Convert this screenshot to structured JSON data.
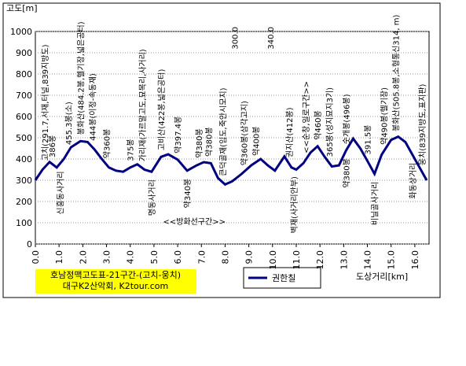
{
  "chart_data": {
    "type": "line",
    "title": "호남정맥고도표-21구간-(고치-웅치)",
    "subtitle": "대구K2산악회, K2tour.com",
    "y_label": "고도[m]",
    "x_label": "도상거리[km]",
    "x": [
      0,
      0.3,
      0.6,
      0.9,
      1.2,
      1.5,
      1.9,
      2.2,
      2.5,
      2.8,
      3.1,
      3.4,
      3.7,
      4.0,
      4.3,
      4.6,
      4.9,
      5.3,
      5.6,
      6.0,
      6.4,
      6.8,
      7.1,
      7.4,
      7.7,
      8.0,
      8.3,
      8.7,
      9.1,
      9.5,
      9.8,
      10.1,
      10.5,
      10.8,
      11.0,
      11.3,
      11.6,
      11.9,
      12.2,
      12.5,
      12.8,
      13.1,
      13.4,
      13.7,
      14.0,
      14.3,
      14.6,
      15.0,
      15.3,
      15.6,
      15.9,
      16.2,
      16.5
    ],
    "series": [
      {
        "name": "권한칠",
        "color": "#000080",
        "values": [
          300,
          350,
          386,
          360,
          400,
          455,
          484,
          480,
          444,
          400,
          360,
          345,
          340,
          360,
          375,
          350,
          340,
          410,
          422,
          397,
          345,
          370,
          385,
          380,
          310,
          280,
          295,
          330,
          370,
          400,
          370,
          345,
          412,
          360,
          350,
          380,
          430,
          460,
          410,
          365,
          370,
          440,
          496,
          450,
          391,
          330,
          420,
          490,
          505,
          480,
          420,
          360,
          300
        ]
      }
    ],
    "xlim": [
      0,
      16.6
    ],
    "ylim": [
      0,
      1000
    ],
    "xticks": [
      {
        "value": 0,
        "label": "0.0"
      },
      {
        "value": 1,
        "label": "1.0"
      },
      {
        "value": 2,
        "label": "2.0"
      },
      {
        "value": 3,
        "label": "3.0"
      },
      {
        "value": 4,
        "label": "4.0"
      },
      {
        "value": 5,
        "label": "5.0"
      },
      {
        "value": 6,
        "label": "6.0"
      },
      {
        "value": 7,
        "label": "7.0"
      },
      {
        "value": 8,
        "label": "8.0"
      },
      {
        "value": 9,
        "label": "9.0"
      },
      {
        "value": 10,
        "label": "10.0"
      },
      {
        "value": 11,
        "label": "11.0"
      },
      {
        "value": 12,
        "label": "12.0"
      },
      {
        "value": 13,
        "label": "13.0"
      },
      {
        "value": 14,
        "label": "14.0"
      },
      {
        "value": 15,
        "label": "15.0"
      },
      {
        "value": 16,
        "label": "16.0"
      }
    ],
    "yticks": [
      0,
      100,
      200,
      300,
      400,
      500,
      600,
      700,
      800,
      900,
      1000
    ],
    "grid": true,
    "annotations": [
      {
        "text": "고치(291.7,서재,터널,839지방도)",
        "x": 0.4,
        "position": "above"
      },
      {
        "text": "386봉",
        "x": 0.7,
        "position": "above"
      },
      {
        "text": "455.3봉(소)",
        "x": 1.4,
        "position": "above"
      },
      {
        "text": "봉화산(484.2봉,헬기장,넓은공터)",
        "x": 1.9,
        "position": "above"
      },
      {
        "text": "444봉(이정-속동재)",
        "x": 2.4,
        "position": "above"
      },
      {
        "text": "약360봉",
        "x": 3.0,
        "position": "above"
      },
      {
        "text": "375봉",
        "x": 4.0,
        "position": "above"
      },
      {
        "text": "가리재(가르말고도,묘목리,사거리)",
        "x": 4.5,
        "position": "above"
      },
      {
        "text": "고비산(422봉,넓은공터)",
        "x": 5.3,
        "position": "above"
      },
      {
        "text": "약397.4봉",
        "x": 6.0,
        "position": "above"
      },
      {
        "text": "약380봉",
        "x": 6.9,
        "position": "above"
      },
      {
        "text": "약380봉",
        "x": 7.3,
        "position": "above"
      },
      {
        "text": "큰덕골재(임도,죽안시모지)",
        "x": 7.9,
        "position": "above"
      },
      {
        "text": "300.0",
        "x": 8.4,
        "position": "top"
      },
      {
        "text": "약360봉(삼각고지)",
        "x": 8.8,
        "position": "above"
      },
      {
        "text": "약400봉",
        "x": 9.3,
        "position": "above"
      },
      {
        "text": "340.0",
        "x": 9.9,
        "position": "top"
      },
      {
        "text": "권지산(412봉)",
        "x": 10.7,
        "position": "above"
      },
      {
        "text": "<<순창,일로구간>>",
        "x": 11.4,
        "position": "above"
      },
      {
        "text": "약460봉",
        "x": 11.9,
        "position": "above"
      },
      {
        "text": "365봉(성지묘지3기)",
        "x": 12.4,
        "position": "above"
      },
      {
        "text": "숫개봉(496봉)",
        "x": 13.1,
        "position": "above"
      },
      {
        "text": "391.5봉",
        "x": 14.0,
        "position": "above"
      },
      {
        "text": "약490봉(헬기장)",
        "x": 14.7,
        "position": "above"
      },
      {
        "text": "봉화산(505.8봉,소형통신314, m)",
        "x": 15.2,
        "position": "above"
      },
      {
        "text": "웅치(839지방도,표지판)",
        "x": 16.3,
        "position": "above"
      },
      {
        "text": "신흥동사거리",
        "x": 1.05,
        "position": "below"
      },
      {
        "text": "명동사거리",
        "x": 4.9,
        "position": "below"
      },
      {
        "text": "약340봉",
        "x": 6.4,
        "position": "below"
      },
      {
        "text": "<<방화선구간>>",
        "x": 6.7,
        "position": "horizontal"
      },
      {
        "text": "벽재(사거리안부)",
        "x": 10.9,
        "position": "below"
      },
      {
        "text": "약380봉",
        "x": 13.1,
        "position": "below"
      },
      {
        "text": "비닐골사거리",
        "x": 14.3,
        "position": "below"
      },
      {
        "text": "화동상거리",
        "x": 15.9,
        "position": "below"
      }
    ]
  }
}
